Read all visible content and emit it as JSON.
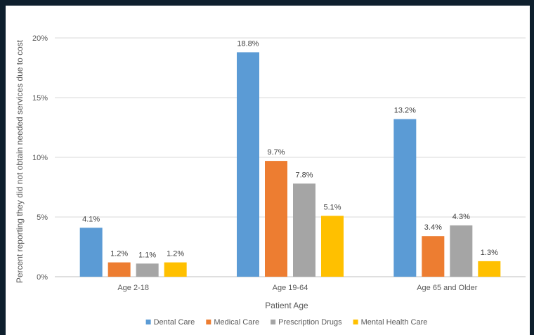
{
  "chart_data": {
    "type": "bar",
    "title": "",
    "xlabel": "Patient Age",
    "ylabel": "Percent reporting they did not obtain needed services due to cost",
    "categories": [
      "Age 2-18",
      "Age 19-64",
      "Age 65 and Older"
    ],
    "series": [
      {
        "name": "Dental Care",
        "color": "#5b9bd5",
        "values": [
          4.1,
          18.8,
          13.2
        ],
        "labels": [
          "4.1%",
          "18.8%",
          "13.2%"
        ]
      },
      {
        "name": "Medical Care",
        "color": "#ed7d31",
        "values": [
          1.2,
          9.7,
          3.4
        ],
        "labels": [
          "1.2%",
          "9.7%",
          "3.4%"
        ]
      },
      {
        "name": "Prescription Drugs",
        "color": "#a5a5a5",
        "values": [
          1.1,
          7.8,
          4.3
        ],
        "labels": [
          "1.1%",
          "7.8%",
          "4.3%"
        ]
      },
      {
        "name": "Mental Health Care",
        "color": "#ffc000",
        "values": [
          1.2,
          5.1,
          1.3
        ],
        "labels": [
          "1.2%",
          "5.1%",
          "1.3%"
        ]
      }
    ],
    "ylim": [
      0,
      20
    ],
    "yticks": [
      0,
      5,
      10,
      15,
      20
    ],
    "ytick_labels": [
      "0%",
      "5%",
      "10%",
      "15%",
      "20%"
    ],
    "grid": true,
    "legend_position": "bottom"
  }
}
